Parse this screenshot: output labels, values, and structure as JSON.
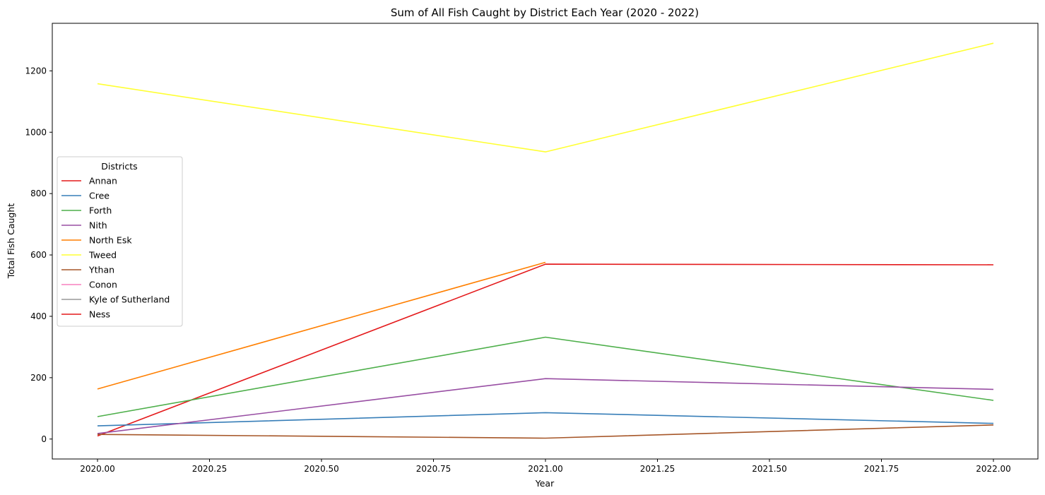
{
  "chart_data": {
    "type": "line",
    "title": "Sum of All Fish Caught by District Each Year (2020 - 2022)",
    "xlabel": "Year",
    "ylabel": "Total Fish Caught",
    "xlim": [
      1989.9,
      2022.1
    ],
    "ylim": [
      -65,
      1355
    ],
    "xticks": [
      2020.0,
      2020.25,
      2020.5,
      2020.75,
      2021.0,
      2021.25,
      2021.5,
      2021.75,
      2022.0
    ],
    "xtick_labels": [
      "2020.00",
      "2020.25",
      "2020.50",
      "2020.75",
      "2021.00",
      "2021.25",
      "2021.50",
      "2021.75",
      "2022.00"
    ],
    "yticks": [
      0,
      200,
      400,
      600,
      800,
      1000,
      1200
    ],
    "ytick_labels": [
      "0",
      "200",
      "400",
      "600",
      "800",
      "1000",
      "1200"
    ],
    "grid": false,
    "legend": {
      "title": "Districts",
      "placement": "center-left"
    },
    "series": [
      {
        "name": "Annan",
        "color": "#e41a1c",
        "x": [
          2020,
          2021,
          2022
        ],
        "y": [
          10,
          570,
          568
        ]
      },
      {
        "name": "Cree",
        "color": "#377eb8",
        "x": [
          2020,
          2021,
          2022
        ],
        "y": [
          43,
          86,
          51
        ]
      },
      {
        "name": "Forth",
        "color": "#4daf4a",
        "x": [
          2020,
          2021,
          2022
        ],
        "y": [
          73,
          332,
          126
        ]
      },
      {
        "name": "Nith",
        "color": "#984ea3",
        "x": [
          2020,
          2021,
          2022
        ],
        "y": [
          18,
          197,
          162
        ]
      },
      {
        "name": "North Esk",
        "color": "#ff7f00",
        "x": [
          2020,
          2021
        ],
        "y": [
          163,
          576
        ]
      },
      {
        "name": "Tweed",
        "color": "#ffff33",
        "x": [
          2020,
          2021,
          2022
        ],
        "y": [
          1158,
          936,
          1290
        ]
      },
      {
        "name": "Ythan",
        "color": "#a65628",
        "x": [
          2020,
          2021,
          2022
        ],
        "y": [
          15,
          3,
          46
        ]
      },
      {
        "name": "Conon",
        "color": "#f781bf",
        "x": [],
        "y": []
      },
      {
        "name": "Kyle of Sutherland",
        "color": "#999999",
        "x": [],
        "y": []
      },
      {
        "name": "Ness",
        "color": "#e41a1c",
        "x": [],
        "y": []
      }
    ]
  }
}
